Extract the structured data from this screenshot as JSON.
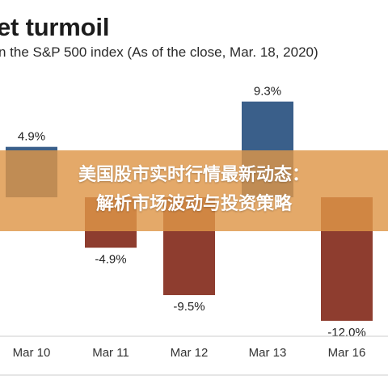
{
  "chart_data": {
    "type": "bar",
    "title": "et turmoil",
    "subtitle": "n the S&P 500 index (As of the close,  Mar. 18, 2020)",
    "categories": [
      "Mar 10",
      "Mar 11",
      "Mar 12",
      "Mar 13",
      "Mar 16"
    ],
    "values": [
      4.9,
      -4.9,
      -9.5,
      9.3,
      -12.0
    ],
    "value_labels": [
      "4.9%",
      "-4.9%",
      "-9.5%",
      "9.3%",
      "-12.0%"
    ],
    "ylim": [
      -13.5,
      11
    ],
    "grid": false,
    "legend": "none",
    "colors": {
      "positive": "#3a5f8a",
      "negative": "#8e3d2f",
      "axis": "#cccccc"
    }
  },
  "overlay": {
    "line1": "美国股市实时行情最新动态：",
    "line2": "解析市场波动与投资策略"
  }
}
